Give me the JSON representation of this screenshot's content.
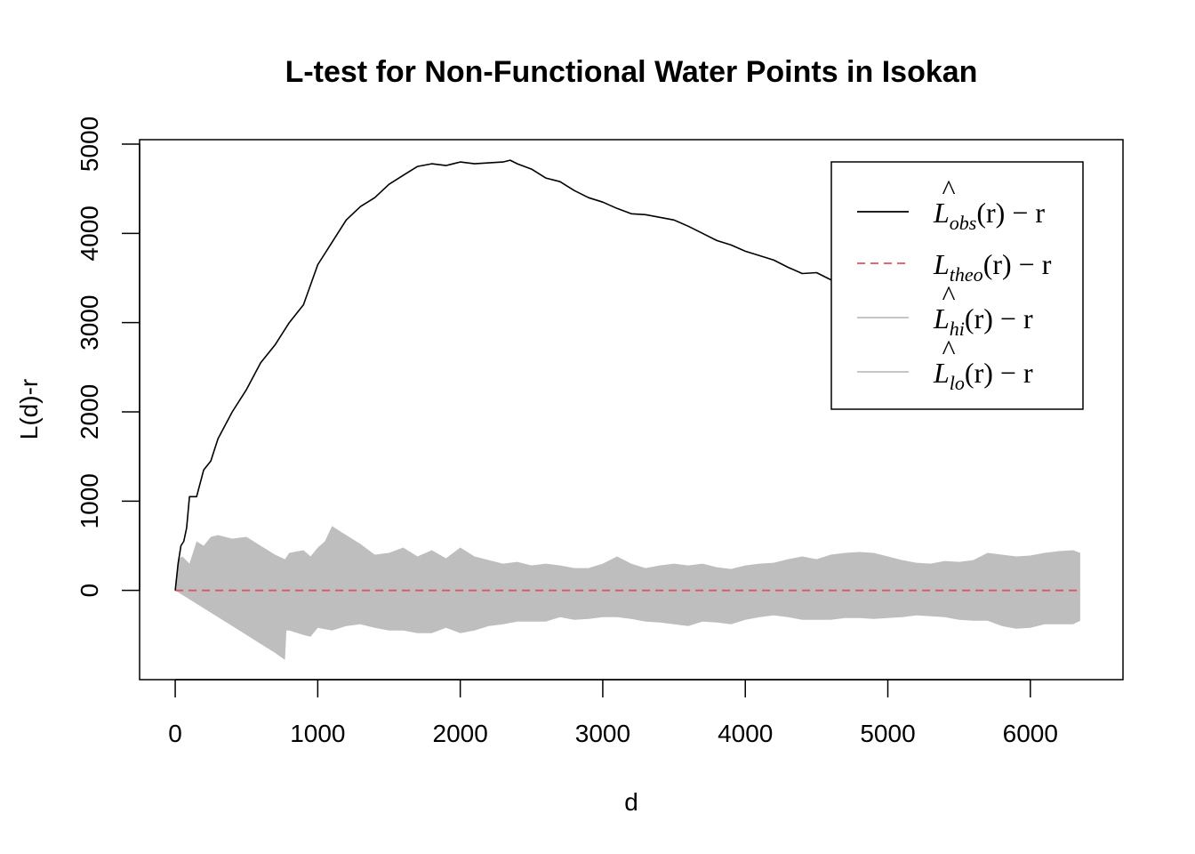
{
  "chart_data": {
    "type": "line",
    "title": "L-test for Non-Functional Water Points in Isokan",
    "xlabel": "d",
    "ylabel": "L(d)-r",
    "xlim": [
      -250,
      6650
    ],
    "ylim": [
      -1000,
      5050
    ],
    "x_ticks": [
      0,
      1000,
      2000,
      3000,
      4000,
      5000,
      6000
    ],
    "y_ticks": [
      0,
      1000,
      2000,
      3000,
      4000,
      5000
    ],
    "x_tick_labels": [
      "0",
      "1000",
      "2000",
      "3000",
      "4000",
      "5000",
      "6000"
    ],
    "y_tick_labels": [
      "0",
      "1000",
      "2000",
      "3000",
      "4000",
      "5000"
    ],
    "grid": false,
    "legend_position": "top-right",
    "colors": {
      "obs": "#000000",
      "theo": "#df536b",
      "envelope": "#bebebe"
    },
    "series": [
      {
        "key": "obs",
        "label": {
          "base": "L",
          "hat": true,
          "sub": "obs",
          "tail": "(r) − r"
        },
        "style": "solid",
        "x": [
          0,
          20,
          40,
          60,
          80,
          100,
          150,
          200,
          250,
          300,
          400,
          500,
          600,
          700,
          800,
          900,
          1000,
          1100,
          1200,
          1300,
          1400,
          1500,
          1600,
          1700,
          1800,
          1900,
          2000,
          2100,
          2200,
          2300,
          2350,
          2400,
          2500,
          2600,
          2700,
          2800,
          2900,
          3000,
          3100,
          3200,
          3300,
          3400,
          3500,
          3600,
          3700,
          3800,
          3900,
          4000,
          4100,
          4200,
          4300,
          4400,
          4500,
          4600,
          4700,
          4800,
          4900,
          5000,
          5100,
          5200,
          5300,
          5400,
          5500,
          5600,
          5700,
          5800,
          5900,
          6000,
          6100,
          6200,
          6300,
          6350
        ],
        "y": [
          0,
          300,
          500,
          550,
          700,
          1050,
          1050,
          1350,
          1450,
          1700,
          2000,
          2250,
          2550,
          2750,
          3000,
          3200,
          3650,
          3900,
          4150,
          4300,
          4400,
          4550,
          4650,
          4750,
          4780,
          4760,
          4800,
          4780,
          4790,
          4800,
          4820,
          4780,
          4720,
          4620,
          4580,
          4480,
          4400,
          4350,
          4280,
          4220,
          4210,
          4180,
          4150,
          4080,
          4000,
          3920,
          3870,
          3800,
          3750,
          3700,
          3620,
          3550,
          3560,
          3480,
          3400,
          3300,
          3230,
          3130,
          3040,
          2950,
          2860,
          2770,
          2680,
          2590,
          2500,
          2400,
          2320,
          2230,
          2150,
          2120,
          2050,
          2030
        ]
      },
      {
        "key": "theo",
        "label": {
          "base": "L",
          "hat": false,
          "sub": "theo",
          "tail": "(r) − r"
        },
        "style": "dashed",
        "x": [
          0,
          6350
        ],
        "y": [
          0,
          0
        ]
      },
      {
        "key": "hi",
        "label": {
          "base": "L",
          "hat": true,
          "sub": "hi",
          "tail": "(r) − r"
        },
        "style": "band-upper",
        "x": [
          0,
          20,
          50,
          100,
          150,
          200,
          250,
          300,
          400,
          500,
          600,
          700,
          770,
          800,
          900,
          950,
          1000,
          1050,
          1100,
          1200,
          1300,
          1400,
          1500,
          1600,
          1700,
          1800,
          1900,
          2000,
          2100,
          2200,
          2300,
          2400,
          2500,
          2600,
          2700,
          2800,
          2900,
          3000,
          3100,
          3200,
          3300,
          3400,
          3500,
          3600,
          3700,
          3800,
          3900,
          4000,
          4100,
          4200,
          4300,
          4400,
          4500,
          4600,
          4700,
          4800,
          4900,
          5000,
          5100,
          5200,
          5300,
          5400,
          5500,
          5600,
          5700,
          5800,
          5900,
          6000,
          6100,
          6200,
          6300,
          6350
        ],
        "y": [
          0,
          350,
          380,
          300,
          550,
          500,
          600,
          620,
          580,
          600,
          500,
          400,
          350,
          420,
          450,
          380,
          480,
          550,
          720,
          620,
          520,
          400,
          420,
          480,
          380,
          450,
          360,
          480,
          380,
          340,
          300,
          320,
          280,
          300,
          280,
          250,
          250,
          300,
          380,
          300,
          250,
          280,
          300,
          280,
          300,
          260,
          240,
          280,
          300,
          310,
          350,
          380,
          350,
          400,
          420,
          430,
          420,
          380,
          340,
          310,
          300,
          330,
          320,
          340,
          420,
          400,
          380,
          390,
          420,
          440,
          450,
          420
        ]
      },
      {
        "key": "lo",
        "label": {
          "base": "L",
          "hat": true,
          "sub": "lo",
          "tail": "(r) − r"
        },
        "style": "band-lower",
        "x": [
          0,
          100,
          200,
          300,
          400,
          500,
          600,
          700,
          770,
          780,
          800,
          900,
          950,
          1000,
          1100,
          1200,
          1300,
          1400,
          1500,
          1600,
          1700,
          1800,
          1900,
          2000,
          2100,
          2200,
          2300,
          2400,
          2500,
          2600,
          2700,
          2800,
          2900,
          3000,
          3100,
          3200,
          3300,
          3400,
          3500,
          3600,
          3700,
          3800,
          3900,
          4000,
          4100,
          4200,
          4300,
          4400,
          4500,
          4600,
          4700,
          4800,
          4900,
          5000,
          5100,
          5200,
          5300,
          5400,
          5500,
          5600,
          5700,
          5800,
          5900,
          6000,
          6100,
          6200,
          6300,
          6350
        ],
        "y": [
          0,
          -100,
          -200,
          -300,
          -400,
          -500,
          -600,
          -700,
          -780,
          -450,
          -450,
          -500,
          -520,
          -420,
          -450,
          -400,
          -380,
          -420,
          -450,
          -450,
          -480,
          -480,
          -420,
          -480,
          -450,
          -400,
          -380,
          -350,
          -350,
          -350,
          -300,
          -330,
          -320,
          -300,
          -300,
          -320,
          -350,
          -360,
          -380,
          -400,
          -350,
          -360,
          -380,
          -330,
          -300,
          -280,
          -300,
          -330,
          -330,
          -330,
          -310,
          -310,
          -320,
          -310,
          -300,
          -280,
          -290,
          -300,
          -330,
          -340,
          -340,
          -400,
          -430,
          -420,
          -380,
          -380,
          -380,
          -340
        ]
      }
    ]
  }
}
